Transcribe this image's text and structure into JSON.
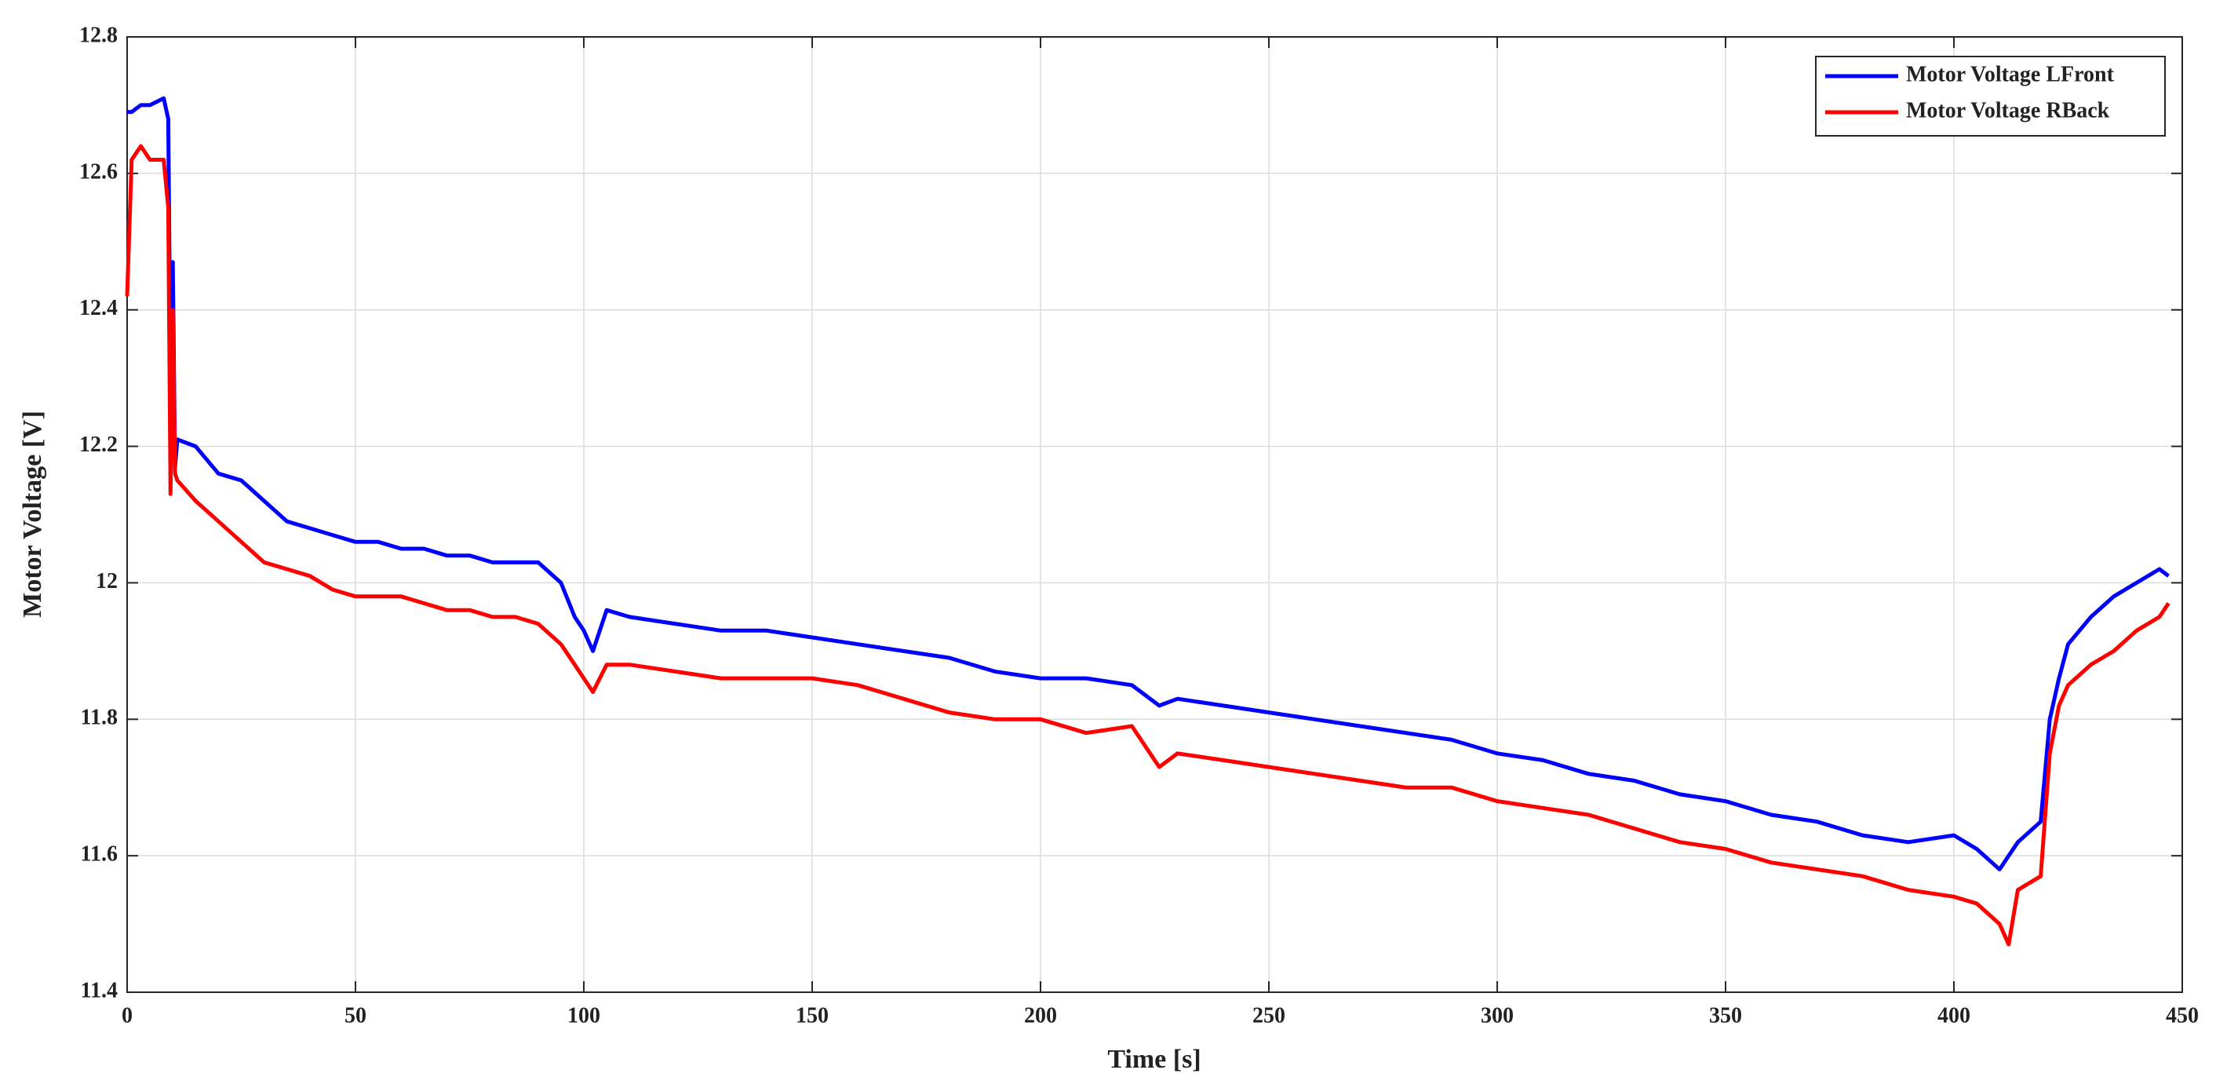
{
  "chart_data": {
    "type": "line",
    "xlabel": "Time [s]",
    "ylabel": "Motor Voltage [V]",
    "xlim": [
      0,
      450
    ],
    "ylim": [
      11.4,
      12.8
    ],
    "xticks": [
      0,
      50,
      100,
      150,
      200,
      250,
      300,
      350,
      400,
      450
    ],
    "yticks": [
      11.4,
      11.6,
      11.8,
      12,
      12.2,
      12.4,
      12.6,
      12.8
    ],
    "grid": true,
    "legend": "upper right",
    "x": [
      0,
      1,
      3,
      5,
      8,
      9,
      9.5,
      10,
      10.5,
      11,
      15,
      20,
      25,
      30,
      35,
      40,
      45,
      50,
      55,
      60,
      65,
      70,
      75,
      80,
      85,
      90,
      95,
      98,
      100,
      102,
      105,
      110,
      120,
      130,
      140,
      150,
      160,
      170,
      180,
      190,
      200,
      210,
      220,
      226,
      230,
      240,
      250,
      260,
      270,
      280,
      290,
      300,
      310,
      320,
      330,
      340,
      350,
      360,
      370,
      380,
      390,
      400,
      405,
      410,
      412,
      414,
      419,
      421,
      423,
      425,
      430,
      435,
      440,
      445,
      447
    ],
    "series": [
      {
        "name": "Motor Voltage LFront",
        "color": "#0000ff",
        "values": [
          12.69,
          12.69,
          12.7,
          12.7,
          12.71,
          12.68,
          12.3,
          12.47,
          12.17,
          12.21,
          12.2,
          12.16,
          12.15,
          12.12,
          12.09,
          12.08,
          12.07,
          12.06,
          12.06,
          12.05,
          12.05,
          12.04,
          12.04,
          12.03,
          12.03,
          12.03,
          12.0,
          11.95,
          11.93,
          11.9,
          11.96,
          11.95,
          11.94,
          11.93,
          11.93,
          11.92,
          11.91,
          11.9,
          11.89,
          11.87,
          11.86,
          11.86,
          11.85,
          11.82,
          11.83,
          11.82,
          11.81,
          11.8,
          11.79,
          11.78,
          11.77,
          11.75,
          11.74,
          11.72,
          11.71,
          11.69,
          11.68,
          11.66,
          11.65,
          11.63,
          11.62,
          11.63,
          11.61,
          11.58,
          11.6,
          11.62,
          11.65,
          11.8,
          11.86,
          11.91,
          11.95,
          11.98,
          12.0,
          12.02,
          12.01
        ]
      },
      {
        "name": "Motor Voltage RBack",
        "color": "#ff0000",
        "values": [
          12.42,
          12.62,
          12.64,
          12.62,
          12.62,
          12.55,
          12.13,
          12.4,
          12.16,
          12.15,
          12.12,
          12.09,
          12.06,
          12.03,
          12.02,
          12.01,
          11.99,
          11.98,
          11.98,
          11.98,
          11.97,
          11.96,
          11.96,
          11.95,
          11.95,
          11.94,
          11.91,
          11.88,
          11.86,
          11.84,
          11.88,
          11.88,
          11.87,
          11.86,
          11.86,
          11.86,
          11.85,
          11.83,
          11.81,
          11.8,
          11.8,
          11.78,
          11.79,
          11.73,
          11.75,
          11.74,
          11.73,
          11.72,
          11.71,
          11.7,
          11.7,
          11.68,
          11.67,
          11.66,
          11.64,
          11.62,
          11.61,
          11.59,
          11.58,
          11.57,
          11.55,
          11.54,
          11.53,
          11.5,
          11.47,
          11.55,
          11.57,
          11.75,
          11.82,
          11.85,
          11.88,
          11.9,
          11.93,
          11.95,
          11.97
        ]
      }
    ]
  }
}
